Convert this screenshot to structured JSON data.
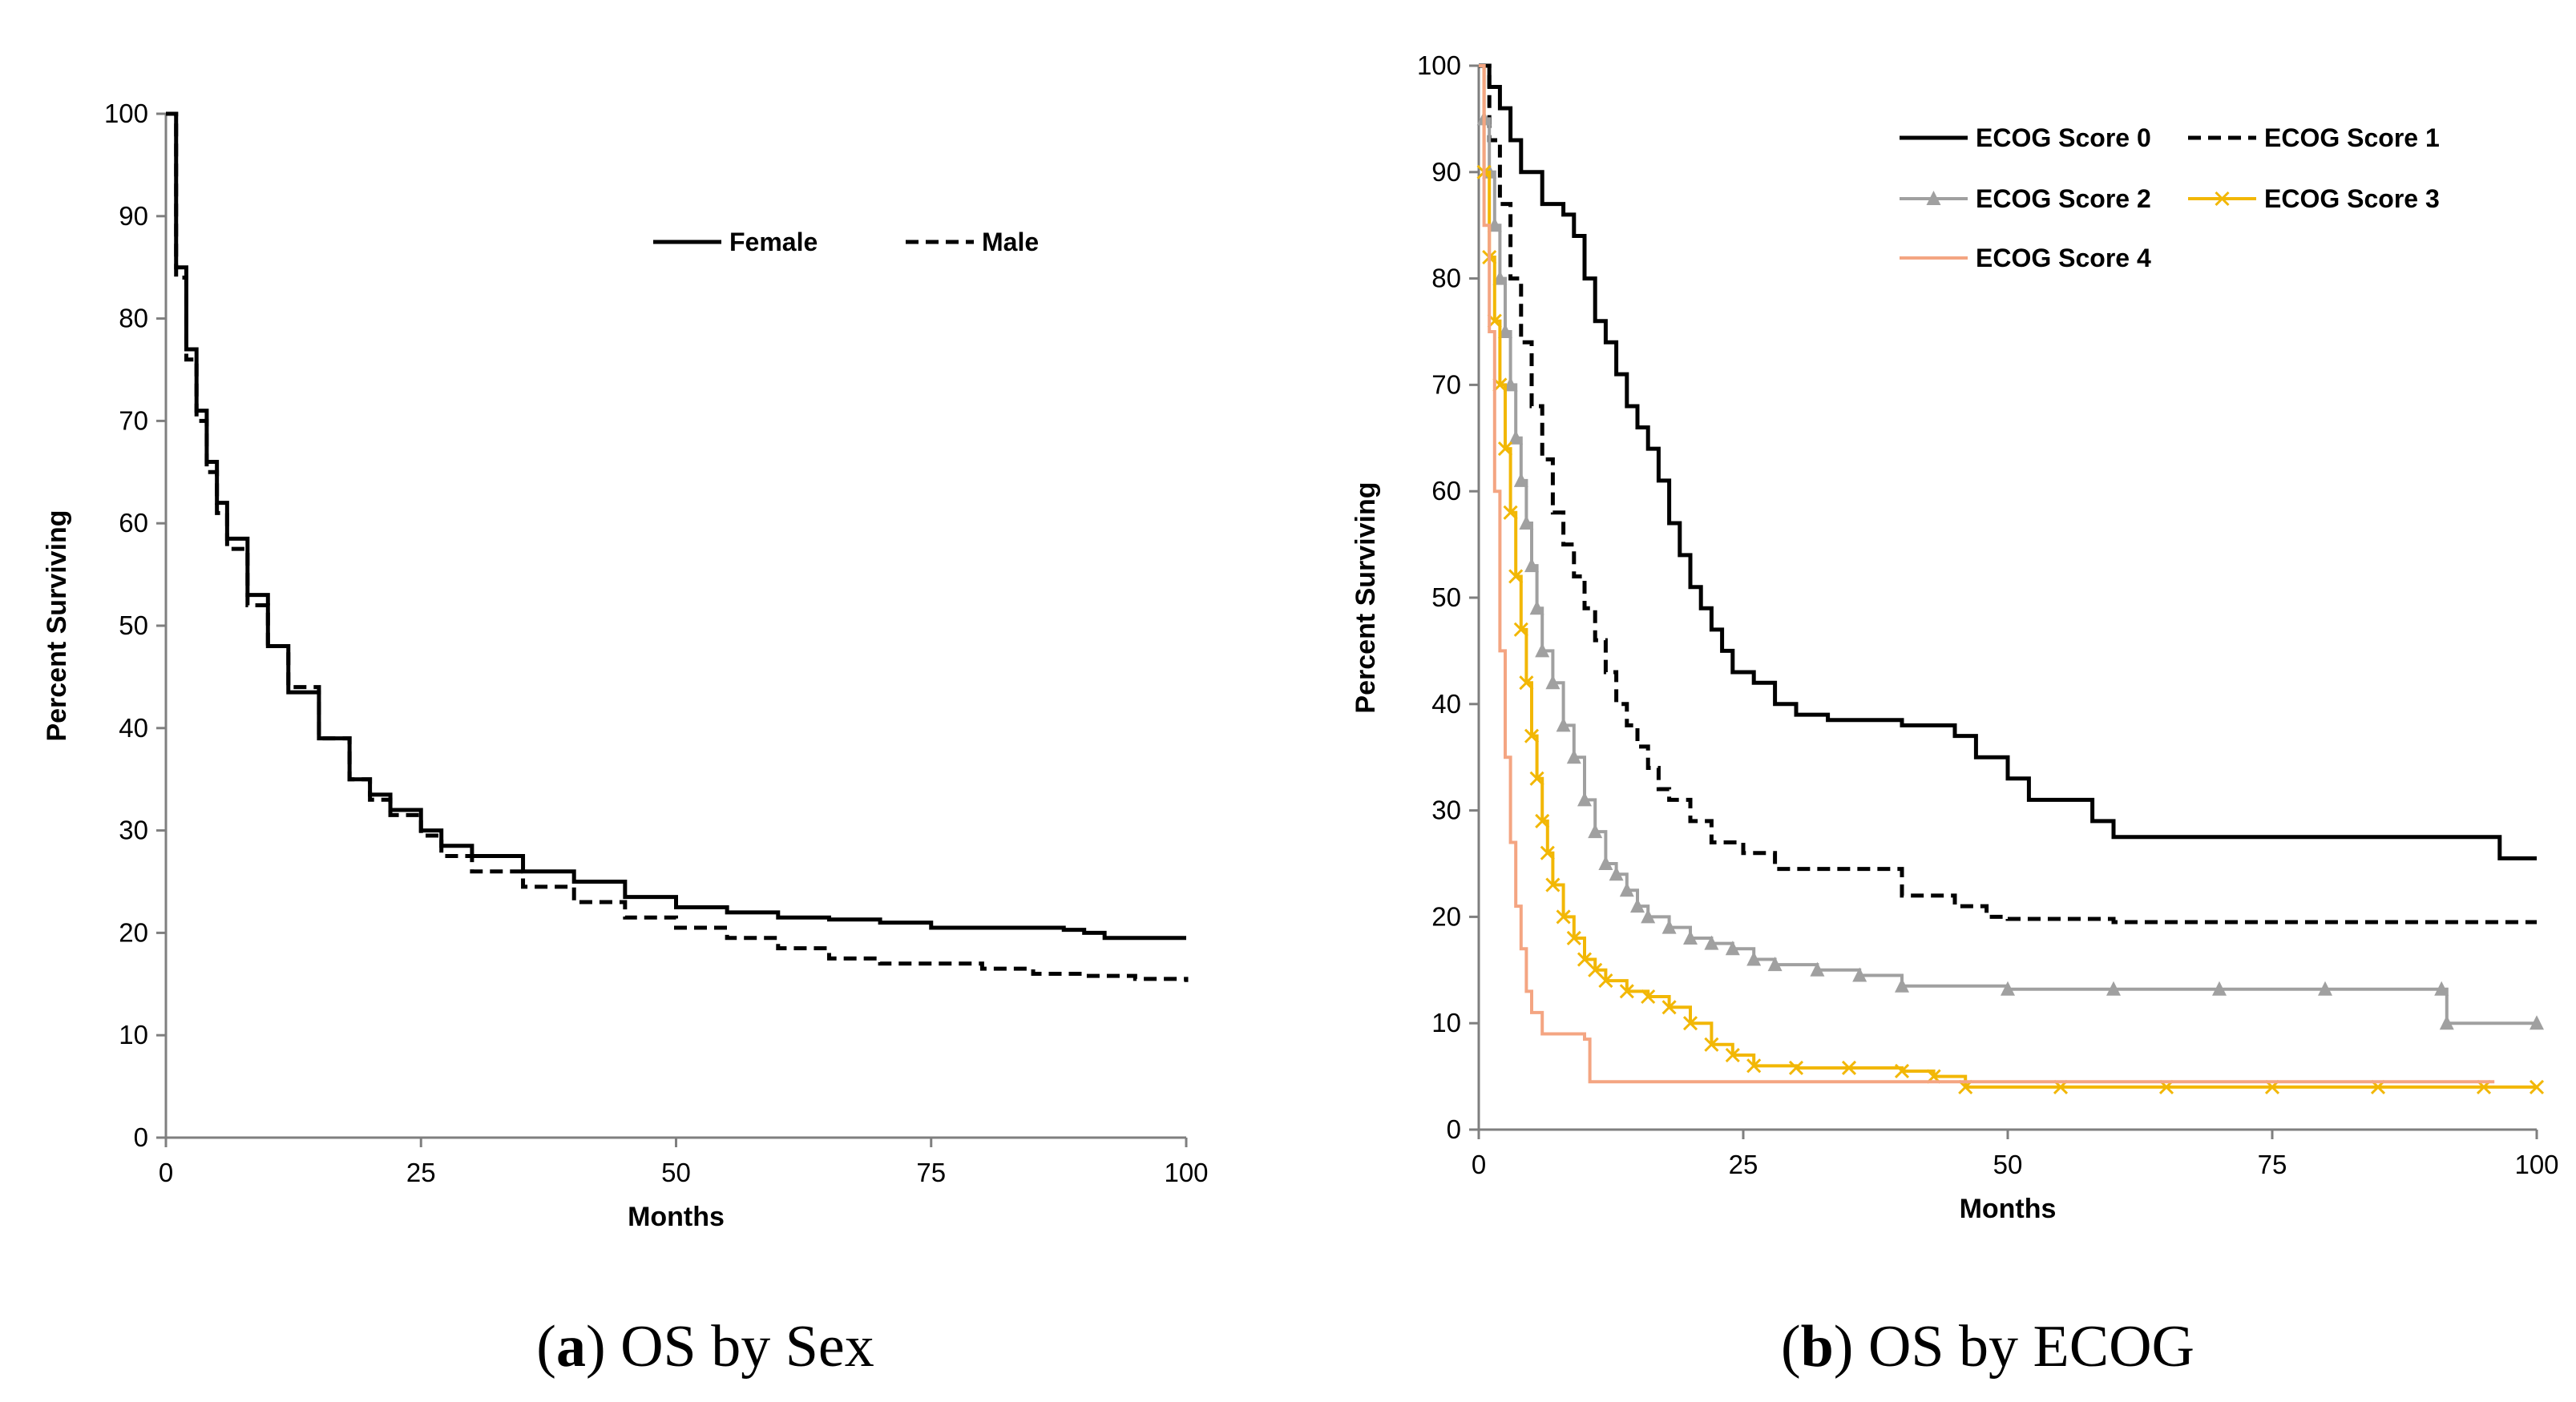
{
  "chart_data": [
    {
      "type": "line",
      "caption": {
        "open": "(",
        "letter": "a",
        "close": ")",
        "text": " OS by Sex"
      },
      "xlabel": "Months",
      "ylabel": "Percent Surviving",
      "xlim": [
        0,
        100
      ],
      "ylim": [
        0,
        100
      ],
      "xticks": [
        0,
        25,
        50,
        75,
        100
      ],
      "yticks": [
        0,
        10,
        20,
        30,
        40,
        50,
        60,
        70,
        80,
        90,
        100
      ],
      "series": [
        {
          "name": "Female",
          "color": "#000000",
          "dash": "solid",
          "points": [
            [
              0,
              100
            ],
            [
              1,
              85
            ],
            [
              2,
              77
            ],
            [
              3,
              71
            ],
            [
              4,
              66
            ],
            [
              5,
              62
            ],
            [
              6,
              58.5
            ],
            [
              8,
              53
            ],
            [
              10,
              48
            ],
            [
              12,
              43.5
            ],
            [
              15,
              39
            ],
            [
              18,
              35
            ],
            [
              20,
              33.5
            ],
            [
              22,
              32
            ],
            [
              25,
              30
            ],
            [
              27,
              28.5
            ],
            [
              30,
              27.5
            ],
            [
              35,
              26
            ],
            [
              40,
              25
            ],
            [
              45,
              23.5
            ],
            [
              50,
              22.5
            ],
            [
              55,
              22
            ],
            [
              60,
              21.5
            ],
            [
              65,
              21.3
            ],
            [
              70,
              21
            ],
            [
              75,
              20.5
            ],
            [
              80,
              20.5
            ],
            [
              85,
              20.5
            ],
            [
              88,
              20.3
            ],
            [
              90,
              20
            ],
            [
              92,
              19.5
            ],
            [
              100,
              19.5
            ]
          ]
        },
        {
          "name": "Male",
          "color": "#000000",
          "dash": "dashed",
          "points": [
            [
              0,
              100
            ],
            [
              1,
              84
            ],
            [
              2,
              76
            ],
            [
              3,
              70
            ],
            [
              4,
              65
            ],
            [
              5,
              61
            ],
            [
              6,
              57.5
            ],
            [
              8,
              52
            ],
            [
              10,
              48
            ],
            [
              12,
              44
            ],
            [
              15,
              39
            ],
            [
              18,
              35
            ],
            [
              20,
              33
            ],
            [
              22,
              31.5
            ],
            [
              25,
              29.5
            ],
            [
              27,
              27.5
            ],
            [
              30,
              26
            ],
            [
              35,
              24.5
            ],
            [
              40,
              23
            ],
            [
              45,
              21.5
            ],
            [
              50,
              20.5
            ],
            [
              55,
              19.5
            ],
            [
              60,
              18.5
            ],
            [
              65,
              17.5
            ],
            [
              70,
              17
            ],
            [
              75,
              17
            ],
            [
              80,
              16.5
            ],
            [
              85,
              16
            ],
            [
              90,
              15.8
            ],
            [
              95,
              15.5
            ],
            [
              100,
              15.2
            ]
          ]
        }
      ]
    },
    {
      "type": "line",
      "caption": {
        "open": "(",
        "letter": "b",
        "close": ")",
        "text": " OS by ECOG"
      },
      "xlabel": "Months",
      "ylabel": "Percent Surviving",
      "xlim": [
        0,
        100
      ],
      "ylim": [
        0,
        100
      ],
      "xticks": [
        0,
        25,
        50,
        75,
        100
      ],
      "yticks": [
        0,
        10,
        20,
        30,
        40,
        50,
        60,
        70,
        80,
        90,
        100
      ],
      "series": [
        {
          "name": "ECOG Score 0",
          "color": "#000000",
          "dash": "solid",
          "marker": "none",
          "points": [
            [
              0,
              100
            ],
            [
              1,
              98
            ],
            [
              2,
              96
            ],
            [
              3,
              93
            ],
            [
              4,
              90
            ],
            [
              6,
              87
            ],
            [
              8,
              86
            ],
            [
              9,
              84
            ],
            [
              10,
              80
            ],
            [
              11,
              76
            ],
            [
              12,
              74
            ],
            [
              13,
              71
            ],
            [
              14,
              68
            ],
            [
              15,
              66
            ],
            [
              16,
              64
            ],
            [
              17,
              61
            ],
            [
              18,
              57
            ],
            [
              19,
              54
            ],
            [
              20,
              51
            ],
            [
              21,
              49
            ],
            [
              22,
              47
            ],
            [
              23,
              45
            ],
            [
              24,
              43
            ],
            [
              26,
              42
            ],
            [
              28,
              40
            ],
            [
              30,
              39
            ],
            [
              33,
              38.5
            ],
            [
              40,
              38
            ],
            [
              45,
              37
            ],
            [
              47,
              35
            ],
            [
              50,
              33
            ],
            [
              52,
              31
            ],
            [
              58,
              29
            ],
            [
              60,
              27.5
            ],
            [
              70,
              27.5
            ],
            [
              80,
              27.5
            ],
            [
              90,
              27.5
            ],
            [
              96,
              27.5
            ],
            [
              96.5,
              25.5
            ],
            [
              100,
              25.5
            ]
          ]
        },
        {
          "name": "ECOG Score 1",
          "color": "#000000",
          "dash": "dashed",
          "marker": "none",
          "points": [
            [
              0,
              100
            ],
            [
              1,
              93
            ],
            [
              2,
              87
            ],
            [
              3,
              80
            ],
            [
              4,
              74
            ],
            [
              5,
              68
            ],
            [
              6,
              63
            ],
            [
              7,
              58
            ],
            [
              8,
              55
            ],
            [
              9,
              52
            ],
            [
              10,
              49
            ],
            [
              11,
              46
            ],
            [
              12,
              43
            ],
            [
              13,
              40
            ],
            [
              14,
              38
            ],
            [
              15,
              36
            ],
            [
              16,
              34
            ],
            [
              17,
              32
            ],
            [
              18,
              31
            ],
            [
              20,
              29
            ],
            [
              22,
              27
            ],
            [
              25,
              26
            ],
            [
              28,
              24.5
            ],
            [
              35,
              24.5
            ],
            [
              40,
              22
            ],
            [
              45,
              21
            ],
            [
              48,
              20
            ],
            [
              50,
              19.8
            ],
            [
              60,
              19.5
            ],
            [
              70,
              19.5
            ],
            [
              80,
              19.5
            ],
            [
              90,
              19.5
            ],
            [
              100,
              19.5
            ]
          ]
        },
        {
          "name": "ECOG Score 2",
          "color": "#a0a0a0",
          "dash": "solid",
          "marker": "triangle",
          "points": [
            [
              0,
              100
            ],
            [
              0.5,
              95
            ],
            [
              1,
              90
            ],
            [
              1.5,
              85
            ],
            [
              2,
              80
            ],
            [
              2.5,
              75
            ],
            [
              3,
              70
            ],
            [
              3.5,
              65
            ],
            [
              4,
              61
            ],
            [
              4.5,
              57
            ],
            [
              5,
              53
            ],
            [
              5.5,
              49
            ],
            [
              6,
              45
            ],
            [
              7,
              42
            ],
            [
              8,
              38
            ],
            [
              9,
              35
            ],
            [
              10,
              31
            ],
            [
              11,
              28
            ],
            [
              12,
              25
            ],
            [
              13,
              24
            ],
            [
              14,
              22.5
            ],
            [
              15,
              21
            ],
            [
              16,
              20
            ],
            [
              18,
              19
            ],
            [
              20,
              18
            ],
            [
              22,
              17.5
            ],
            [
              24,
              17
            ],
            [
              26,
              16
            ],
            [
              28,
              15.5
            ],
            [
              32,
              15
            ],
            [
              36,
              14.5
            ],
            [
              40,
              13.5
            ],
            [
              50,
              13.2
            ],
            [
              60,
              13.2
            ],
            [
              70,
              13.2
            ],
            [
              80,
              13.2
            ],
            [
              91,
              13.2
            ],
            [
              91.5,
              10
            ],
            [
              100,
              10
            ]
          ]
        },
        {
          "name": "ECOG Score 3",
          "color": "#f2b705",
          "dash": "solid",
          "marker": "x",
          "points": [
            [
              0,
              100
            ],
            [
              0.5,
              90
            ],
            [
              1,
              82
            ],
            [
              1.5,
              76
            ],
            [
              2,
              70
            ],
            [
              2.5,
              64
            ],
            [
              3,
              58
            ],
            [
              3.5,
              52
            ],
            [
              4,
              47
            ],
            [
              4.5,
              42
            ],
            [
              5,
              37
            ],
            [
              5.5,
              33
            ],
            [
              6,
              29
            ],
            [
              6.5,
              26
            ],
            [
              7,
              23
            ],
            [
              8,
              20
            ],
            [
              9,
              18
            ],
            [
              10,
              16
            ],
            [
              11,
              15
            ],
            [
              12,
              14
            ],
            [
              14,
              13
            ],
            [
              16,
              12.5
            ],
            [
              18,
              11.5
            ],
            [
              20,
              10
            ],
            [
              22,
              8
            ],
            [
              24,
              7
            ],
            [
              26,
              6
            ],
            [
              30,
              5.8
            ],
            [
              35,
              5.8
            ],
            [
              40,
              5.5
            ],
            [
              43,
              5
            ],
            [
              46,
              4
            ],
            [
              55,
              4
            ],
            [
              65,
              4
            ],
            [
              75,
              4
            ],
            [
              85,
              4
            ],
            [
              95,
              4
            ],
            [
              100,
              4
            ]
          ]
        },
        {
          "name": "ECOG Score 4",
          "color": "#f4a582",
          "dash": "solid",
          "marker": "none",
          "points": [
            [
              0,
              100
            ],
            [
              0.5,
              85
            ],
            [
              1,
              75
            ],
            [
              1.5,
              60
            ],
            [
              2,
              45
            ],
            [
              2.5,
              35
            ],
            [
              3,
              27
            ],
            [
              3.5,
              21
            ],
            [
              4,
              17
            ],
            [
              4.5,
              13
            ],
            [
              5,
              11
            ],
            [
              6,
              9
            ],
            [
              8,
              9
            ],
            [
              10,
              8.5
            ],
            [
              10.5,
              4.5
            ],
            [
              20,
              4.5
            ],
            [
              30,
              4.5
            ],
            [
              40,
              4.5
            ],
            [
              50,
              4.5
            ],
            [
              60,
              4.5
            ],
            [
              70,
              4.5
            ],
            [
              80,
              4.5
            ],
            [
              90,
              4.5
            ],
            [
              96,
              4.5
            ]
          ]
        }
      ]
    }
  ]
}
